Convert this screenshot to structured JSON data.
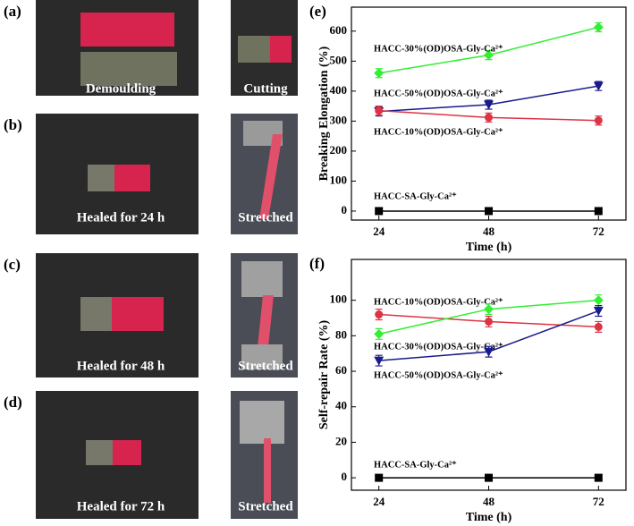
{
  "panels": [
    {
      "label": "(a)",
      "left": "Demoulding",
      "right": "Cutting"
    },
    {
      "label": "(b)",
      "left": "Healed for 24 h",
      "right": "Stretched"
    },
    {
      "label": "(c)",
      "left": "Healed for 48 h",
      "right": "Stretched"
    },
    {
      "label": "(d)",
      "left": "Healed for 72 h",
      "right": "Stretched"
    }
  ],
  "chart_data": [
    {
      "type": "line",
      "panel_label": "(e)",
      "ylabel": "Breaking Elongation (%)",
      "xlabel": "Time (h)",
      "x": [
        24,
        48,
        72
      ],
      "xlim": [
        18,
        78
      ],
      "xticks": [
        24,
        48,
        72
      ],
      "ylim": [
        -30,
        680
      ],
      "yticks": [
        0,
        100,
        200,
        300,
        400,
        500,
        600
      ],
      "series": [
        {
          "name": "HACC-30%(OD)OSA-Gly-Ca²⁺",
          "color": "#33ee33",
          "marker": "diamond",
          "values": [
            460,
            520,
            613
          ],
          "errors": [
            15,
            15,
            15
          ]
        },
        {
          "name": "HACC-50%(OD)OSA-Gly-Ca²⁺",
          "color": "#1a1a8c",
          "marker": "triangle-down",
          "values": [
            332,
            355,
            417
          ],
          "errors": [
            15,
            15,
            15
          ]
        },
        {
          "name": "HACC-10%(OD)OSA-Gly-Ca²⁺",
          "color": "#dd3344",
          "marker": "circle",
          "values": [
            335,
            312,
            302
          ],
          "errors": [
            15,
            15,
            15
          ]
        },
        {
          "name": "HACC-SA-Gly-Ca²⁺",
          "color": "#000000",
          "marker": "square",
          "values": [
            0,
            0,
            0
          ],
          "errors": [
            0,
            0,
            0
          ]
        }
      ]
    },
    {
      "type": "line",
      "panel_label": "(f)",
      "ylabel": "Self-repair Rate (%)",
      "xlabel": "Time (h)",
      "x": [
        24,
        48,
        72
      ],
      "xlim": [
        18,
        78
      ],
      "xticks": [
        24,
        48,
        72
      ],
      "ylim": [
        -7,
        123
      ],
      "yticks": [
        0,
        20,
        40,
        60,
        80,
        100
      ],
      "series": [
        {
          "name": "HACC-10%(OD)OSA-Gly-Ca²⁺",
          "color": "#dd3344",
          "marker": "circle",
          "values": [
            92,
            88,
            85
          ],
          "errors": [
            3,
            3,
            3
          ]
        },
        {
          "name": "HACC-30%(OD)OSA-Gly-Ca²⁺",
          "color": "#33ee33",
          "marker": "diamond",
          "values": [
            81,
            95,
            100
          ],
          "errors": [
            3,
            3,
            3
          ]
        },
        {
          "name": "HACC-50%(OD)OSA-Gly-Ca²⁺",
          "color": "#1a1a8c",
          "marker": "triangle-down",
          "values": [
            66,
            71,
            94
          ],
          "errors": [
            3,
            3,
            3
          ]
        },
        {
          "name": "HACC-SA-Gly-Ca²⁺",
          "color": "#000000",
          "marker": "square",
          "values": [
            0,
            0,
            0
          ],
          "errors": [
            0,
            0,
            0
          ]
        }
      ]
    }
  ]
}
